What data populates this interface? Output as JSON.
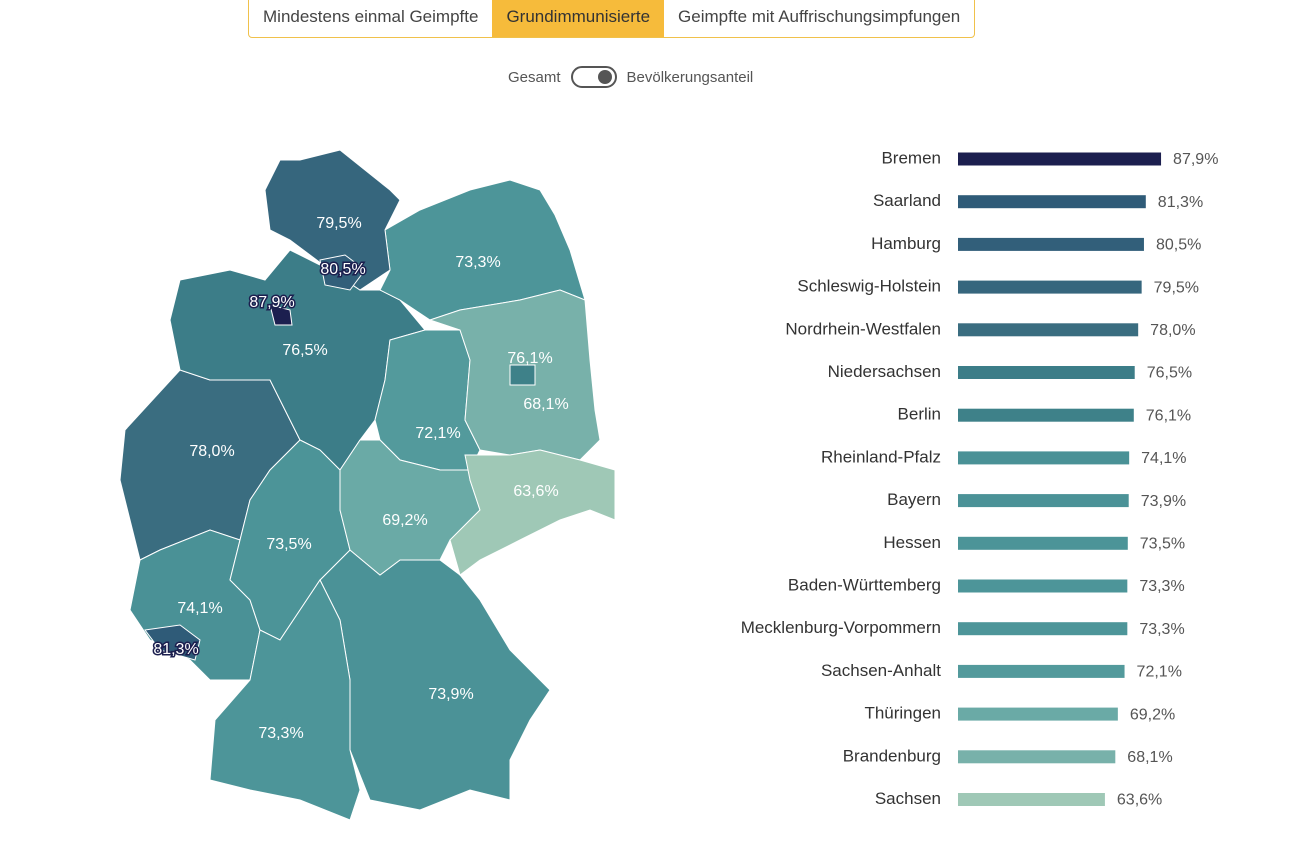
{
  "tabs": {
    "items": [
      "Mindestens einmal Geimpfte",
      "Grundimmunisierte",
      "Geimpfte mit Auffrischungsimpfungen"
    ],
    "selected": 1
  },
  "toggle": {
    "left": "Gesamt",
    "right": "Bevölkerungsanteil"
  },
  "chart_data": {
    "type": "hbar",
    "categories": [
      "Bremen",
      "Saarland",
      "Hamburg",
      "Schleswig-Holstein",
      "Nordrhein-Westfalen",
      "Niedersachsen",
      "Berlin",
      "Rheinland-Pfalz",
      "Bayern",
      "Hessen",
      "Baden-Württemberg",
      "Mecklenburg-Vorpommern",
      "Sachsen-Anhalt",
      "Thüringen",
      "Brandenburg",
      "Sachsen"
    ],
    "values": [
      87.9,
      81.3,
      80.5,
      79.5,
      78.0,
      76.5,
      76.1,
      74.1,
      73.9,
      73.5,
      73.3,
      73.3,
      72.1,
      69.2,
      68.1,
      63.6
    ],
    "value_labels": [
      "87,9%",
      "81,3%",
      "80,5%",
      "79,5%",
      "78,0%",
      "76,5%",
      "76,1%",
      "74,1%",
      "73,9%",
      "73,5%",
      "73,3%",
      "73,3%",
      "72,1%",
      "69,2%",
      "68,1%",
      "63,6%"
    ],
    "colors": [
      "#1c1f4f",
      "#2f5b78",
      "#325f7a",
      "#36667d",
      "#3a6d80",
      "#3c7d88",
      "#3e8189",
      "#4a9196",
      "#4b9297",
      "#4c9498",
      "#4d9599",
      "#4d9599",
      "#539a9c",
      "#6aaaa6",
      "#78b1aa",
      "#9fc8b6"
    ]
  }
}
